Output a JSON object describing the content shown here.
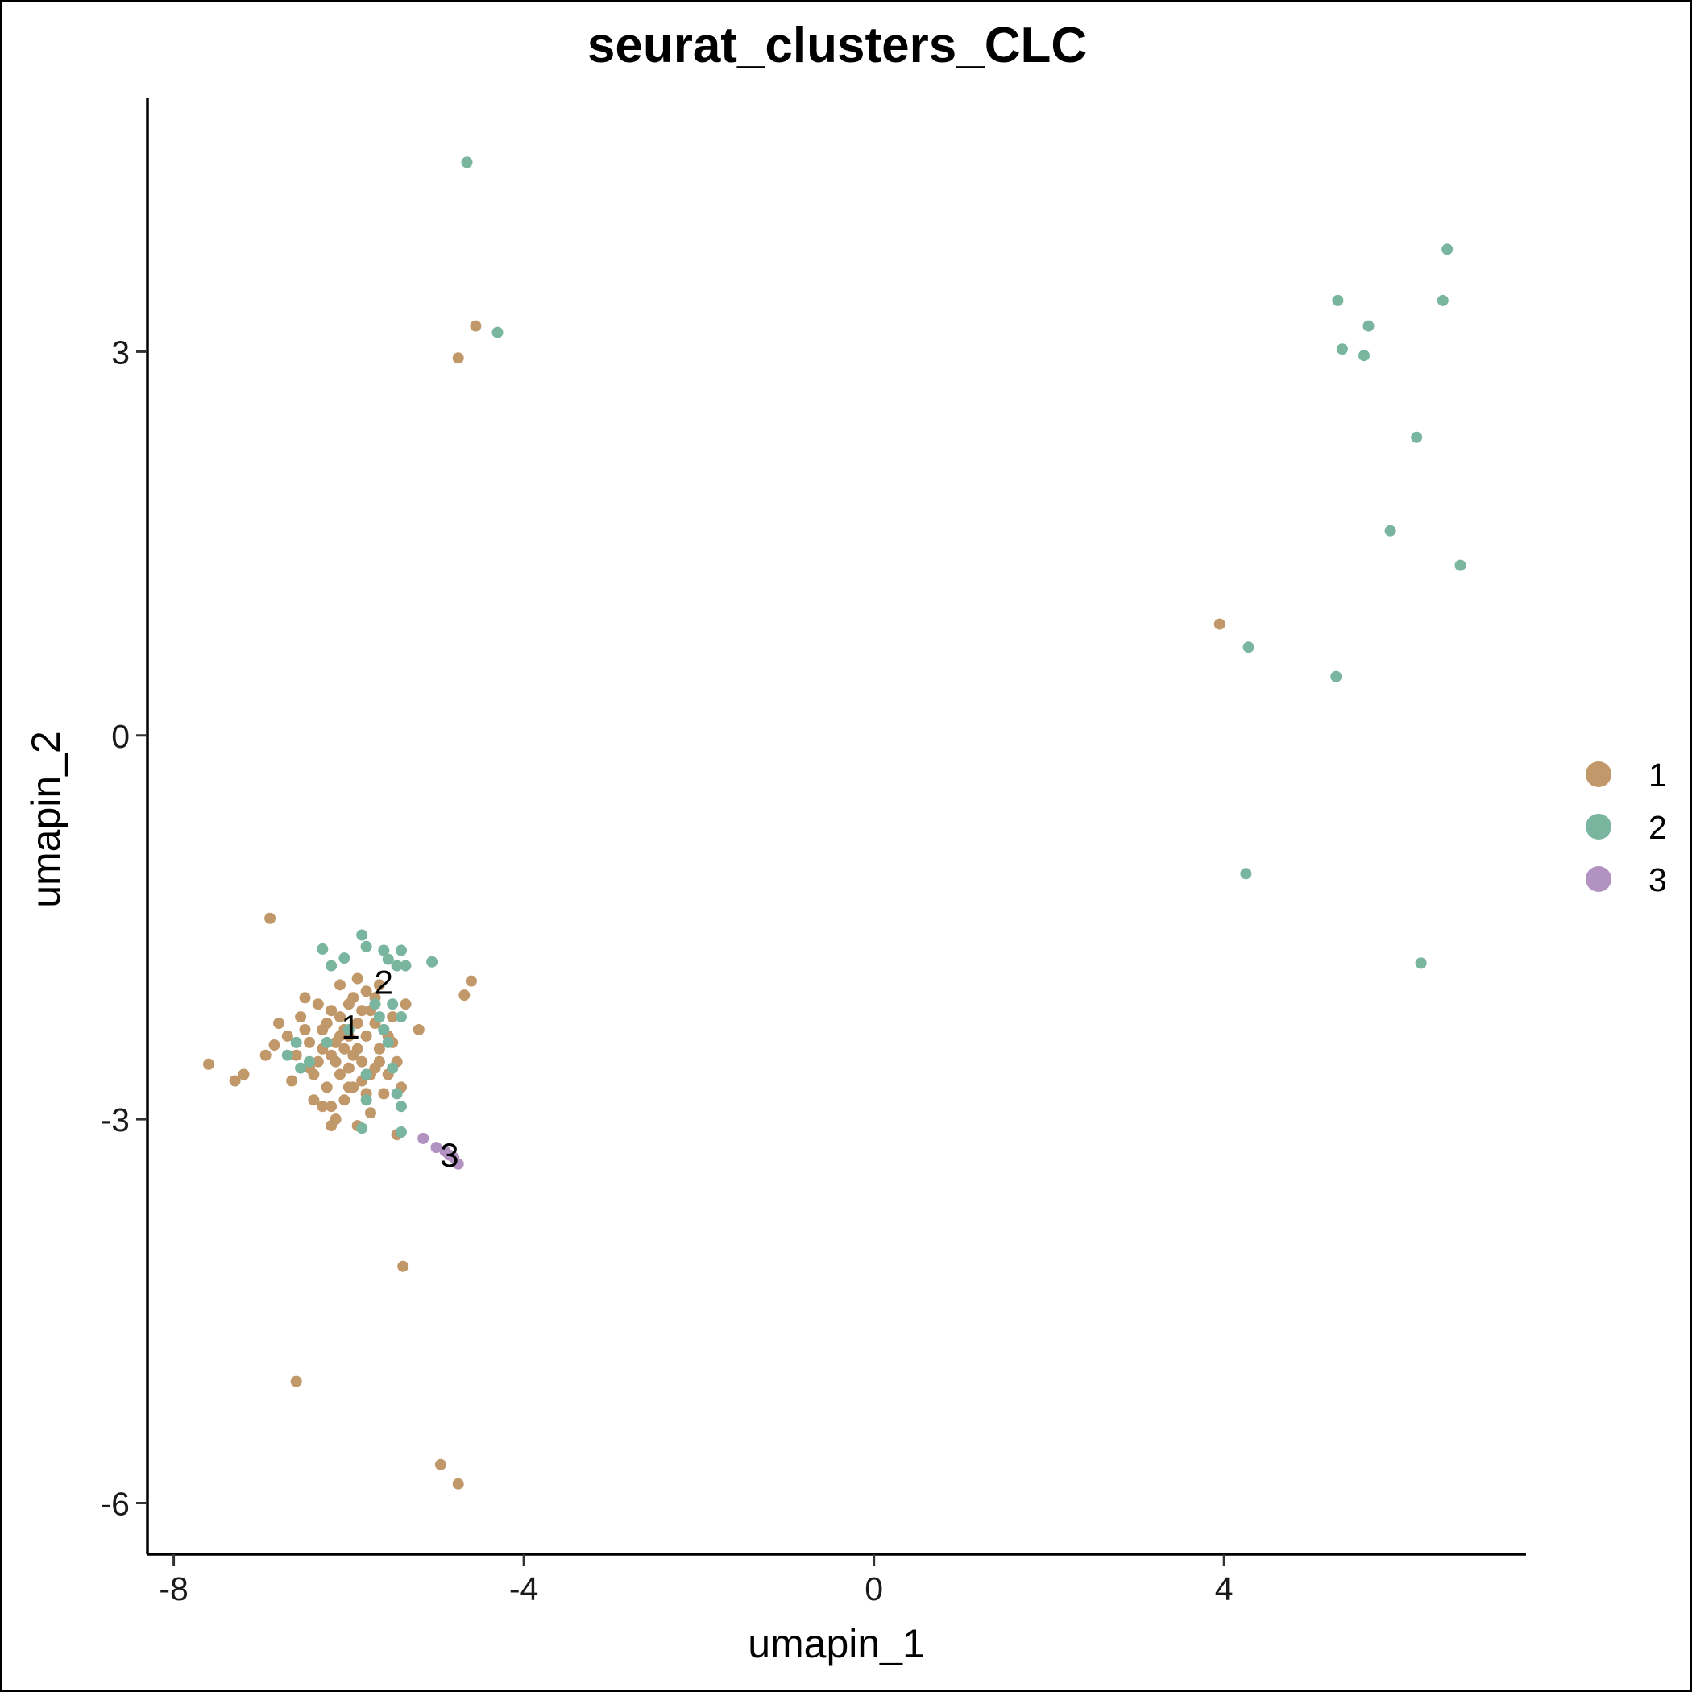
{
  "chart_data": {
    "type": "scatter",
    "title": "seurat_clusters_CLC",
    "xlabel": "umapin_1",
    "ylabel": "umapin_2",
    "xlim": [
      -8.3,
      7.45
    ],
    "ylim": [
      -6.4,
      4.98
    ],
    "x_ticks": [
      {
        "value": -8,
        "label": "-8"
      },
      {
        "value": -4,
        "label": "-4"
      },
      {
        "value": 0,
        "label": "0"
      },
      {
        "value": 4,
        "label": "4"
      }
    ],
    "y_ticks": [
      {
        "value": -6,
        "label": "-6"
      },
      {
        "value": -3,
        "label": "-3"
      },
      {
        "value": 0,
        "label": "0"
      },
      {
        "value": 3,
        "label": "3"
      }
    ],
    "grid": false,
    "legend_position": "right",
    "colors": {
      "1": "#c09869",
      "2": "#79b59f",
      "3": "#b192c1"
    },
    "cluster_labels": [
      {
        "text": "1",
        "x": -5.98,
        "y": -2.3
      },
      {
        "text": "2",
        "x": -5.6,
        "y": -1.95
      },
      {
        "text": "3",
        "x": -4.85,
        "y": -3.3
      }
    ],
    "series": [
      {
        "name": "1",
        "points": [
          [
            -4.55,
            3.2
          ],
          [
            -4.75,
            2.95
          ],
          [
            3.95,
            0.87
          ],
          [
            -6.9,
            -1.43
          ],
          [
            -4.6,
            -1.92
          ],
          [
            -4.68,
            -2.03
          ],
          [
            -5.2,
            -2.3
          ],
          [
            -5.95,
            -2.05
          ],
          [
            -5.8,
            -2.35
          ],
          [
            -6.2,
            -2.5
          ],
          [
            -5.7,
            -2.6
          ],
          [
            -6.1,
            -2.2
          ],
          [
            -5.85,
            -2.7
          ],
          [
            -6.3,
            -2.3
          ],
          [
            -5.9,
            -2.45
          ],
          [
            -6.05,
            -2.85
          ],
          [
            -5.75,
            -2.15
          ],
          [
            -6.15,
            -2.55
          ],
          [
            -5.65,
            -2.45
          ],
          [
            -6.35,
            -2.1
          ],
          [
            -5.5,
            -2.2
          ],
          [
            -5.9,
            -1.9
          ],
          [
            -6.0,
            -2.6
          ],
          [
            -6.25,
            -2.75
          ],
          [
            -5.55,
            -2.65
          ],
          [
            -6.45,
            -2.4
          ],
          [
            -5.8,
            -2.0
          ],
          [
            -6.05,
            -2.3
          ],
          [
            -5.95,
            -2.5
          ],
          [
            -6.15,
            -2.4
          ],
          [
            -6.55,
            -2.2
          ],
          [
            -6.6,
            -2.5
          ],
          [
            -6.4,
            -2.65
          ],
          [
            -6.5,
            -2.05
          ],
          [
            -6.7,
            -2.35
          ],
          [
            -6.8,
            -2.25
          ],
          [
            -6.65,
            -2.7
          ],
          [
            -6.3,
            -2.9
          ],
          [
            -6.2,
            -3.05
          ],
          [
            -5.9,
            -3.05
          ],
          [
            -5.75,
            -2.95
          ],
          [
            -5.6,
            -2.8
          ],
          [
            -5.35,
            -2.1
          ],
          [
            -5.45,
            -2.55
          ],
          [
            -5.4,
            -2.75
          ],
          [
            -6.1,
            -1.95
          ],
          [
            -5.65,
            -1.95
          ],
          [
            -6.2,
            -2.9
          ],
          [
            -6.4,
            -2.85
          ],
          [
            -5.85,
            -2.55
          ],
          [
            -6.0,
            -2.35
          ],
          [
            -5.7,
            -2.25
          ],
          [
            -6.25,
            -2.25
          ],
          [
            -6.1,
            -2.65
          ],
          [
            -5.8,
            -2.8
          ],
          [
            -5.6,
            -2.3
          ],
          [
            -6.35,
            -2.55
          ],
          [
            -6.5,
            -2.3
          ],
          [
            -5.5,
            -2.4
          ],
          [
            -6.0,
            -2.1
          ],
          [
            -6.85,
            -2.42
          ],
          [
            -6.95,
            -2.5
          ],
          [
            -7.6,
            -2.57
          ],
          [
            -7.2,
            -2.65
          ],
          [
            -7.3,
            -2.7
          ],
          [
            -5.45,
            -3.12
          ],
          [
            -5.38,
            -4.15
          ],
          [
            -6.6,
            -5.05
          ],
          [
            -4.95,
            -5.7
          ],
          [
            -4.75,
            -5.85
          ],
          [
            -6.15,
            -3.0
          ],
          [
            -5.95,
            -2.75
          ],
          [
            -5.75,
            -2.65
          ],
          [
            -6.05,
            -2.45
          ],
          [
            -5.9,
            -2.25
          ],
          [
            -5.65,
            -2.55
          ],
          [
            -6.3,
            -2.45
          ],
          [
            -6.45,
            -2.6
          ],
          [
            -5.55,
            -2.35
          ],
          [
            -6.2,
            -2.15
          ],
          [
            -5.85,
            -2.15
          ],
          [
            -6.0,
            -2.75
          ],
          [
            -5.7,
            -2.05
          ],
          [
            -6.1,
            -2.35
          ]
        ]
      },
      {
        "name": "2",
        "points": [
          [
            -4.65,
            4.48
          ],
          [
            -4.3,
            3.15
          ],
          [
            6.55,
            3.8
          ],
          [
            5.3,
            3.4
          ],
          [
            6.5,
            3.4
          ],
          [
            5.65,
            3.2
          ],
          [
            5.35,
            3.02
          ],
          [
            5.6,
            2.97
          ],
          [
            6.2,
            2.33
          ],
          [
            5.9,
            1.6
          ],
          [
            6.7,
            1.33
          ],
          [
            4.28,
            0.69
          ],
          [
            5.28,
            0.46
          ],
          [
            4.25,
            -1.08
          ],
          [
            6.25,
            -1.78
          ],
          [
            -5.85,
            -1.56
          ],
          [
            -5.8,
            -1.65
          ],
          [
            -5.6,
            -1.68
          ],
          [
            -5.4,
            -1.68
          ],
          [
            -5.55,
            -1.75
          ],
          [
            -5.45,
            -1.8
          ],
          [
            -5.35,
            -1.8
          ],
          [
            -5.05,
            -1.77
          ],
          [
            -6.3,
            -1.67
          ],
          [
            -6.05,
            -1.74
          ],
          [
            -6.2,
            -1.8
          ],
          [
            -5.5,
            -2.1
          ],
          [
            -5.4,
            -2.2
          ],
          [
            -5.6,
            -2.3
          ],
          [
            -5.7,
            -2.1
          ],
          [
            -5.55,
            -2.4
          ],
          [
            -5.5,
            -2.6
          ],
          [
            -6.45,
            -2.55
          ],
          [
            -6.6,
            -2.4
          ],
          [
            -6.55,
            -2.6
          ],
          [
            -6.7,
            -2.5
          ],
          [
            -6.25,
            -2.4
          ],
          [
            -5.8,
            -2.65
          ],
          [
            -5.45,
            -2.8
          ],
          [
            -5.4,
            -2.9
          ],
          [
            -5.8,
            -2.85
          ],
          [
            -5.85,
            -3.07
          ],
          [
            -5.4,
            -3.1
          ],
          [
            -6.0,
            -2.3
          ],
          [
            -5.65,
            -2.2
          ]
        ]
      },
      {
        "name": "3",
        "points": [
          [
            -5.15,
            -3.15
          ],
          [
            -5.0,
            -3.22
          ],
          [
            -4.9,
            -3.25
          ],
          [
            -4.8,
            -3.3
          ],
          [
            -4.75,
            -3.35
          ],
          [
            -4.85,
            -3.28
          ]
        ]
      }
    ]
  }
}
